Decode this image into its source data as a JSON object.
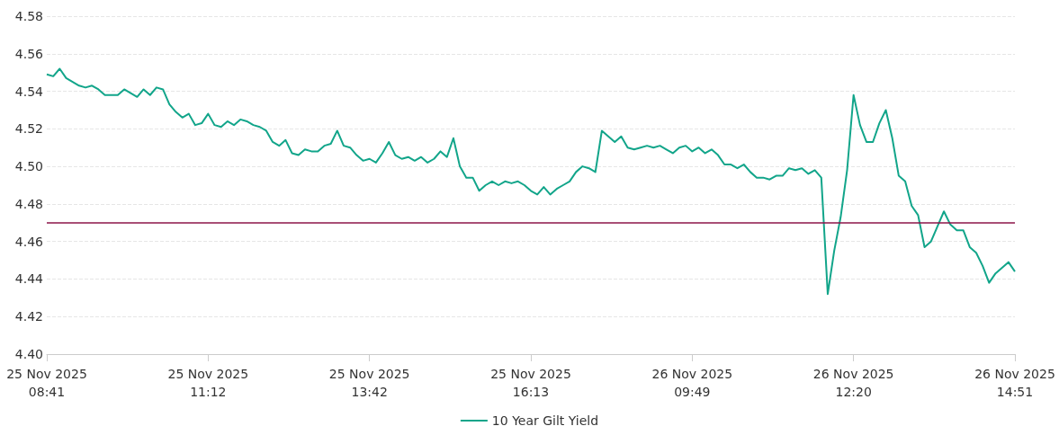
{
  "chart_data": {
    "type": "line",
    "categories": [
      "25 Nov 2025\n08:41",
      null,
      null,
      null,
      null,
      null,
      null,
      null,
      null,
      null,
      null,
      null,
      null,
      null,
      null,
      null,
      null,
      null,
      null,
      null,
      null,
      null,
      null,
      null,
      null,
      "25 Nov 2025\n11:12",
      null,
      null,
      null,
      null,
      null,
      null,
      null,
      null,
      null,
      null,
      null,
      null,
      null,
      null,
      null,
      null,
      null,
      null,
      null,
      null,
      null,
      null,
      null,
      null,
      "25 Nov 2025\n13:42",
      null,
      null,
      null,
      null,
      null,
      null,
      null,
      null,
      null,
      null,
      null,
      null,
      null,
      null,
      null,
      null,
      null,
      null,
      null,
      null,
      null,
      null,
      null,
      null,
      "25 Nov 2025\n16:13",
      null,
      null,
      null,
      null,
      null,
      null,
      null,
      null,
      null,
      null,
      null,
      null,
      null,
      null,
      null,
      null,
      null,
      null,
      null,
      null,
      null,
      null,
      null,
      null,
      "26 Nov 2025\n09:49",
      null,
      null,
      null,
      null,
      null,
      null,
      null,
      null,
      null,
      null,
      null,
      null,
      null,
      null,
      null,
      null,
      null,
      null,
      null,
      null,
      null,
      null,
      null,
      null,
      "26 Nov 2025\n12:20",
      null,
      null,
      null,
      null,
      null,
      null,
      null,
      null,
      null,
      null,
      null,
      null,
      null,
      null,
      null,
      null,
      null,
      null,
      null,
      null,
      null,
      null,
      null,
      null,
      "26 Nov 2025\n14:51"
    ],
    "series": [
      {
        "name": "10 Year Gilt Yield",
        "color": "#12a58a",
        "values": [
          4.549,
          4.548,
          4.552,
          4.547,
          4.545,
          4.543,
          4.542,
          4.543,
          4.541,
          4.538,
          4.538,
          4.538,
          4.541,
          4.539,
          4.537,
          4.541,
          4.538,
          4.542,
          4.541,
          4.533,
          4.529,
          4.526,
          4.528,
          4.522,
          4.523,
          4.528,
          4.522,
          4.521,
          4.524,
          4.522,
          4.525,
          4.524,
          4.522,
          4.521,
          4.519,
          4.513,
          4.511,
          4.514,
          4.507,
          4.506,
          4.509,
          4.508,
          4.508,
          4.511,
          4.512,
          4.519,
          4.511,
          4.51,
          4.506,
          4.503,
          4.504,
          4.502,
          4.507,
          4.513,
          4.506,
          4.504,
          4.505,
          4.503,
          4.505,
          4.502,
          4.504,
          4.508,
          4.505,
          4.515,
          4.5,
          4.494,
          4.494,
          4.487,
          4.49,
          4.492,
          4.49,
          4.492,
          4.491,
          4.492,
          4.49,
          4.487,
          4.485,
          4.489,
          4.485,
          4.488,
          4.49,
          4.492,
          4.497,
          4.5,
          4.499,
          4.497,
          4.519,
          4.516,
          4.513,
          4.516,
          4.51,
          4.509,
          4.51,
          4.511,
          4.51,
          4.511,
          4.509,
          4.507,
          4.51,
          4.511,
          4.508,
          4.51,
          4.507,
          4.509,
          4.506,
          4.501,
          4.501,
          4.499,
          4.501,
          4.497,
          4.494,
          4.494,
          4.493,
          4.495,
          4.495,
          4.499,
          4.498,
          4.499,
          4.496,
          4.498,
          4.494,
          4.432,
          4.455,
          4.473,
          4.498,
          4.538,
          4.522,
          4.513,
          4.513,
          4.523,
          4.53,
          4.515,
          4.495,
          4.492,
          4.479,
          4.474,
          4.457,
          4.46,
          4.468,
          4.476,
          4.469,
          4.466,
          4.466,
          4.457,
          4.454,
          4.447,
          4.438,
          4.443,
          4.446,
          4.449,
          4.444
        ]
      }
    ],
    "ylim": [
      4.4,
      4.58
    ],
    "yticks": [
      {
        "value": 4.4,
        "label": "4.40"
      },
      {
        "value": 4.42,
        "label": "4.42"
      },
      {
        "value": 4.44,
        "label": "4.44"
      },
      {
        "value": 4.46,
        "label": "4.46"
      },
      {
        "value": 4.48,
        "label": "4.48"
      },
      {
        "value": 4.5,
        "label": "4.50"
      },
      {
        "value": 4.52,
        "label": "4.52"
      },
      {
        "value": 4.54,
        "label": "4.54"
      },
      {
        "value": 4.56,
        "label": "4.56"
      },
      {
        "value": 4.58,
        "label": "4.58"
      }
    ],
    "ref_lines": [
      {
        "axis": "y",
        "value": 4.47,
        "color": "#8c1448"
      }
    ],
    "grid": "y",
    "legend": "bottom",
    "marker": "none",
    "line_style": "solid"
  }
}
